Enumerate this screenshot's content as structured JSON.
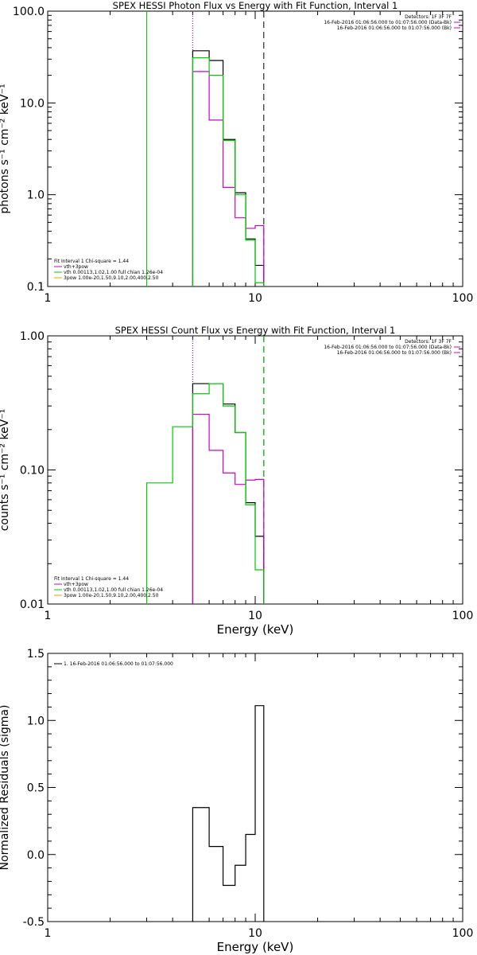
{
  "chart_data": [
    {
      "type": "line",
      "title": "SPEX HESSI Photon Flux vs Energy with Fit Function, Interval 1",
      "xlabel": "",
      "ylabel": "photons s⁻¹ cm⁻² keV⁻¹",
      "xscale": "log",
      "yscale": "log",
      "xlim": [
        1,
        100
      ],
      "ylim": [
        0.1,
        100
      ],
      "xticks": [
        {
          "v": 1,
          "t": "1"
        },
        {
          "v": 10,
          "t": "10"
        },
        {
          "v": 100,
          "t": "100"
        }
      ],
      "yticks": [
        {
          "v": 0.1,
          "t": "0.1"
        },
        {
          "v": 1,
          "t": "1.0"
        },
        {
          "v": 10,
          "t": "10.0"
        },
        {
          "v": 100,
          "t": "100.0"
        }
      ],
      "vlines": [
        {
          "x": 3.0,
          "color": "#00cc00",
          "style": "solid"
        },
        {
          "x": 5.0,
          "color": "#00cc00",
          "style": "dotted"
        },
        {
          "x": 5.0,
          "color": "#cc00cc",
          "style": "dotted"
        },
        {
          "x": 11.0,
          "color": "#000000",
          "style": "dashed"
        }
      ],
      "header": [
        "Detectors: 1F 3F 7F",
        "16-Feb-2016 01:06:56.000 to 01:07:56.000 (Data-Bk)",
        "16-Feb-2016 01:06:56.000 to 01:07:56.000 (Bk)"
      ],
      "header_colors": [
        "",
        "#cc00cc",
        "#cc00cc"
      ],
      "legend": [
        "Fit Interval 1   Chi-square = 1.44",
        "vth+3pow",
        "vth 0.00113,1.02,1.00  full chian 1.26e-04",
        "3pow 1.00e-20,1.50,9.10,2.00,400,2.50"
      ],
      "legend_colors": [
        "",
        "#cc00cc",
        "#00cc00",
        "#ddaa00"
      ],
      "edges": [
        5,
        6,
        7,
        8,
        9,
        10,
        11
      ],
      "series": [
        {
          "name": "",
          "color": "#000000",
          "values": [
            37,
            29,
            4.0,
            1.05,
            0.33,
            0.17
          ]
        },
        {
          "name": "",
          "color": "#cc00cc",
          "values": [
            22,
            6.5,
            1.2,
            0.56,
            0.43,
            0.46
          ]
        },
        {
          "name": "",
          "color": "#00cc00",
          "values": [
            31,
            20,
            3.9,
            1.0,
            0.32,
            0.11
          ]
        }
      ]
    },
    {
      "type": "line",
      "title": "SPEX HESSI Count Flux vs Energy with Fit Function, Interval 1",
      "xlabel": "Energy (keV)",
      "ylabel": "counts s⁻¹ cm⁻² keV⁻¹",
      "xscale": "log",
      "yscale": "log",
      "xlim": [
        1,
        100
      ],
      "ylim": [
        0.01,
        1
      ],
      "xticks": [
        {
          "v": 1,
          "t": "1"
        },
        {
          "v": 10,
          "t": "10"
        },
        {
          "v": 100,
          "t": "100"
        }
      ],
      "yticks": [
        {
          "v": 0.01,
          "t": "0.01"
        },
        {
          "v": 0.1,
          "t": "0.10"
        },
        {
          "v": 1,
          "t": "1.00"
        }
      ],
      "vlines": [
        {
          "x": 5.0,
          "color": "#000000",
          "style": "dotted"
        },
        {
          "x": 5.0,
          "color": "#cc00cc",
          "style": "dotted"
        },
        {
          "x": 11.0,
          "color": "#000000",
          "style": "dashed"
        },
        {
          "x": 11.0,
          "color": "#00cc00",
          "style": "dashed"
        }
      ],
      "header": [
        "Detectors: 1F 3F 7F",
        "16-Feb-2016 01:06:56.000 to 01:07:56.000 (Data-Bk)",
        "16-Feb-2016 01:06:56.000 to 01:07:56.000 (Bk)"
      ],
      "header_colors": [
        "",
        "#cc00cc",
        "#cc00cc"
      ],
      "legend": [
        "Fit Interval 1   Chi-square = 1.44",
        "vth+3pow",
        "vth 0.00113,1.02,1.00  full chian 1.26e-04",
        "3pow 1.00e-20,1.50,9.10,2.00,400,2.50"
      ],
      "legend_colors": [
        "",
        "#cc00cc",
        "#00cc00",
        "#ddaa00"
      ],
      "series": [
        {
          "name": "",
          "color": "#000000",
          "edges": [
            5,
            6,
            7,
            8,
            9,
            10,
            11
          ],
          "values": [
            0.44,
            0.44,
            0.31,
            0.19,
            0.057,
            0.032
          ]
        },
        {
          "name": "",
          "color": "#cc00cc",
          "edges": [
            5,
            6,
            7,
            8,
            9,
            10,
            11
          ],
          "values": [
            0.26,
            0.14,
            0.095,
            0.078,
            0.084,
            0.085
          ]
        },
        {
          "name": "",
          "color": "#00cc00",
          "edges": [
            3,
            4,
            5,
            6,
            7,
            8,
            9,
            10,
            11
          ],
          "values": [
            0.08,
            0.21,
            0.37,
            0.44,
            0.3,
            0.19,
            0.055,
            0.018
          ]
        }
      ]
    },
    {
      "type": "line",
      "title": "",
      "xlabel": "Energy (keV)",
      "ylabel": "Normalized Residuals (sigma)",
      "xscale": "log",
      "yscale": "linear",
      "xlim": [
        1,
        100
      ],
      "ylim": [
        -0.5,
        1.5
      ],
      "xticks": [
        {
          "v": 1,
          "t": "1"
        },
        {
          "v": 10,
          "t": "10"
        },
        {
          "v": 100,
          "t": "100"
        }
      ],
      "yticks": [
        {
          "v": -0.5,
          "t": "-0.5"
        },
        {
          "v": 0,
          "t": "0.0"
        },
        {
          "v": 0.5,
          "t": "0.5"
        },
        {
          "v": 1.0,
          "t": "1.0"
        },
        {
          "v": 1.5,
          "t": "1.5"
        }
      ],
      "vlines": [],
      "header": [],
      "header_colors": [],
      "legend": [
        "1. 16-Feb-2016 01:06:56.000 to 01:07:56.000"
      ],
      "legend_colors": [
        "#000000"
      ],
      "series": [
        {
          "name": "",
          "color": "#000000",
          "edges": [
            5,
            6,
            7,
            8,
            9,
            10,
            11
          ],
          "values": [
            0.35,
            0.06,
            -0.23,
            -0.08,
            0.15,
            1.11
          ]
        }
      ]
    }
  ]
}
